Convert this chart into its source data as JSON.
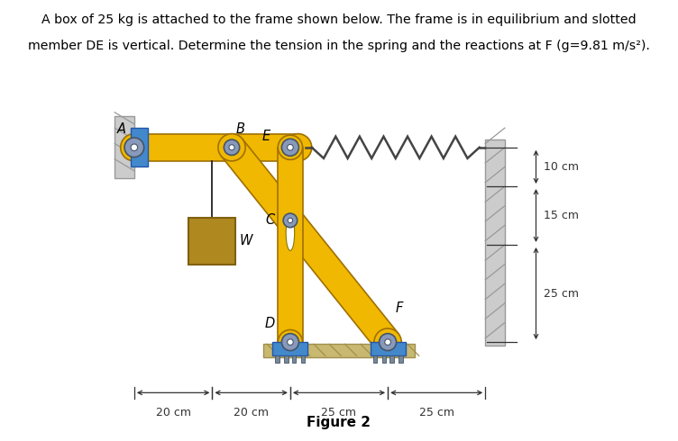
{
  "title_line1": "A box of 25 kg is attached to the frame shown below. The frame is in equilibrium and slotted",
  "title_line2": "member DE is vertical. Determine the tension in the spring and the reactions at F (g=9.81 m/s²).",
  "figure_label": "Figure 2",
  "yellow": "#F0B800",
  "yellow_dark": "#C89000",
  "yellow_edge": "#A07000",
  "blue": "#4488CC",
  "blue_dark": "#2255AA",
  "gray_floor": "#C8B870",
  "gray_floor_dark": "#A09050",
  "box_color": "#B08820",
  "box_edge": "#806010",
  "bg": "#FFFFFF",
  "dim_color": "#333333",
  "label_color": "#000000",
  "spring_color": "#444444",
  "wall_gray": "#CCCCCC",
  "wall_hatch": "#999999",
  "pin_fill": "#8899BB",
  "pin_edge": "#445566",
  "rope_color": "#222222"
}
